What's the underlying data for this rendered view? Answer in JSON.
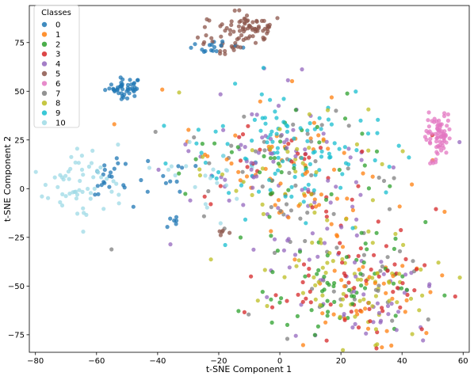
{
  "chart_data": {
    "type": "scatter",
    "title": "",
    "xlabel": "t-SNE Component 1",
    "ylabel": "t-SNE Component 2",
    "xlim": [
      -82,
      62
    ],
    "ylim": [
      -84,
      94
    ],
    "xticks": [
      -80,
      -60,
      -40,
      -20,
      0,
      20,
      40,
      60
    ],
    "yticks": [
      -75,
      -50,
      -25,
      0,
      25,
      50,
      75
    ],
    "grid": false,
    "legend": {
      "title": "Classes",
      "placement": "top-left"
    },
    "series": [
      {
        "name": "0",
        "color": "#1f77b4",
        "clusters": [
          {
            "cx": -51,
            "cy": 52,
            "sx": 3,
            "sy": 2.5,
            "n": 45
          },
          {
            "cx": -22,
            "cy": 72,
            "sx": 4,
            "sy": 2,
            "n": 16
          },
          {
            "cx": -56,
            "cy": 4,
            "sx": 4,
            "sy": 6,
            "n": 22
          },
          {
            "cx": -35,
            "cy": -16,
            "sx": 2,
            "sy": 1.5,
            "n": 6
          },
          {
            "cx": -37,
            "cy": 4,
            "sx": 4,
            "sy": 4,
            "n": 10
          }
        ]
      },
      {
        "name": "1",
        "color": "#ff7f0e",
        "clusters": [
          {
            "cx": 5,
            "cy": 10,
            "sx": 17,
            "sy": 20,
            "n": 65
          },
          {
            "cx": 25,
            "cy": -50,
            "sx": 14,
            "sy": 15,
            "n": 38
          }
        ]
      },
      {
        "name": "2",
        "color": "#2ca02c",
        "clusters": [
          {
            "cx": 5,
            "cy": 5,
            "sx": 18,
            "sy": 20,
            "n": 40
          },
          {
            "cx": 23,
            "cy": -52,
            "sx": 14,
            "sy": 15,
            "n": 60
          }
        ]
      },
      {
        "name": "3",
        "color": "#d62728",
        "clusters": [
          {
            "cx": 2,
            "cy": 0,
            "sx": 16,
            "sy": 18,
            "n": 35
          },
          {
            "cx": 24,
            "cy": -50,
            "sx": 14,
            "sy": 15,
            "n": 60
          }
        ]
      },
      {
        "name": "4",
        "color": "#9467bd",
        "clusters": [
          {
            "cx": 2,
            "cy": 8,
            "sx": 18,
            "sy": 20,
            "n": 80
          },
          {
            "cx": 25,
            "cy": -50,
            "sx": 14,
            "sy": 16,
            "n": 50
          }
        ]
      },
      {
        "name": "5",
        "color": "#8c564b",
        "clusters": [
          {
            "cx": -10,
            "cy": 82,
            "sx": 5,
            "sy": 4,
            "n": 75
          },
          {
            "cx": -19,
            "cy": 72,
            "sx": 3,
            "sy": 2,
            "n": 15
          },
          {
            "cx": -18,
            "cy": -22,
            "sx": 2,
            "sy": 1.5,
            "n": 5
          }
        ]
      },
      {
        "name": "6",
        "color": "#e377c2",
        "clusters": [
          {
            "cx": 52,
            "cy": 28,
            "sx": 2.2,
            "sy": 5,
            "n": 65
          },
          {
            "cx": 50,
            "cy": 14,
            "sx": 1,
            "sy": 2,
            "n": 6
          }
        ]
      },
      {
        "name": "7",
        "color": "#7f7f7f",
        "clusters": [
          {
            "cx": 3,
            "cy": 5,
            "sx": 18,
            "sy": 20,
            "n": 45
          },
          {
            "cx": 25,
            "cy": -48,
            "sx": 14,
            "sy": 15,
            "n": 30
          }
        ]
      },
      {
        "name": "8",
        "color": "#bcbd22",
        "clusters": [
          {
            "cx": 3,
            "cy": 8,
            "sx": 17,
            "sy": 20,
            "n": 40
          },
          {
            "cx": 24,
            "cy": -50,
            "sx": 14,
            "sy": 15,
            "n": 70
          }
        ]
      },
      {
        "name": "9",
        "color": "#17becf",
        "clusters": [
          {
            "cx": 5,
            "cy": 18,
            "sx": 18,
            "sy": 16,
            "n": 110
          }
        ]
      },
      {
        "name": "10",
        "color": "#9edae5",
        "clusters": [
          {
            "cx": -66,
            "cy": 2,
            "sx": 8,
            "sy": 9,
            "n": 60
          },
          {
            "cx": -25,
            "cy": 8,
            "sx": 8,
            "sy": 12,
            "n": 20
          }
        ]
      }
    ]
  }
}
